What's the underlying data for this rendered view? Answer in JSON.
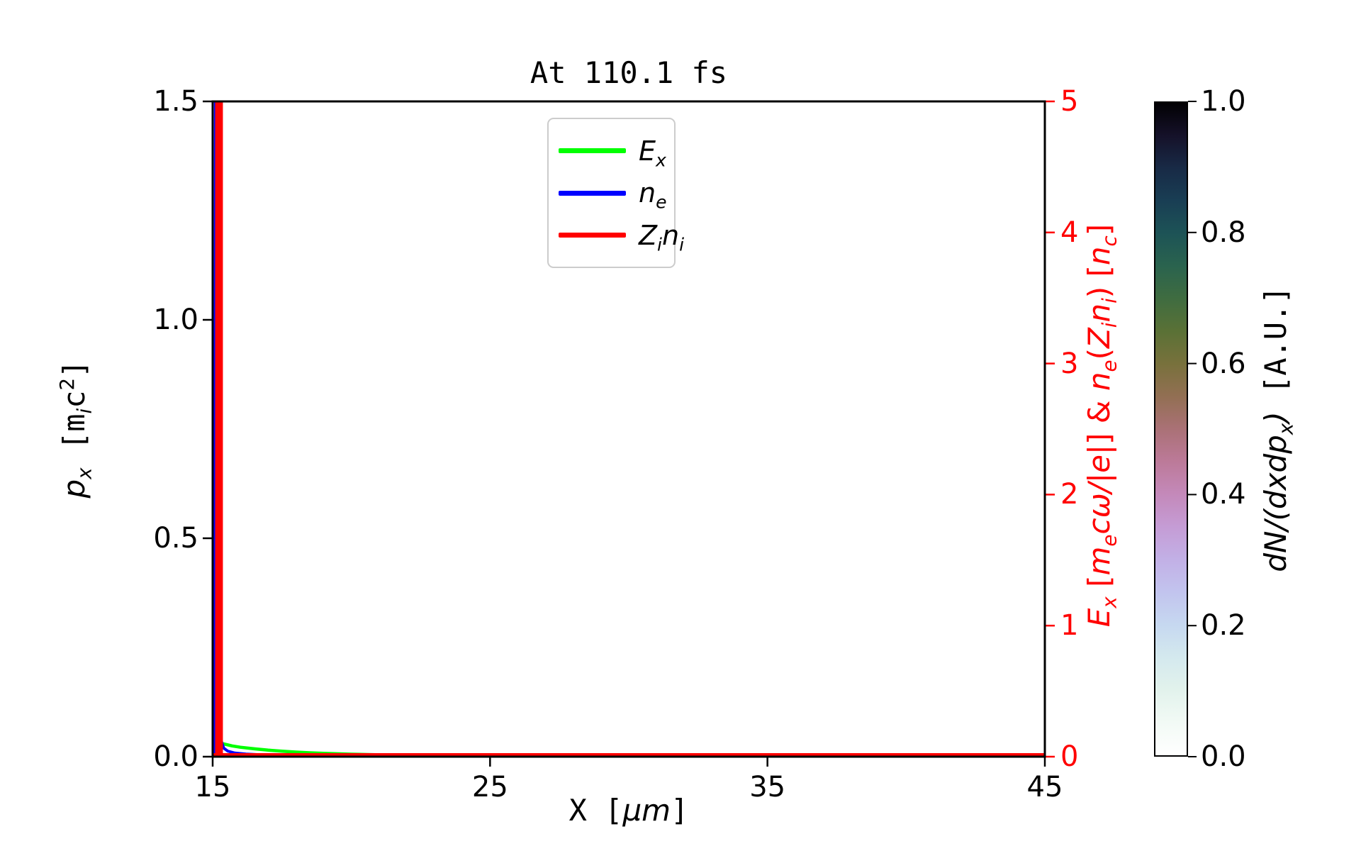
{
  "figure": {
    "title": "At 110.1 fs",
    "bg": "#ffffff"
  },
  "colors": {
    "spine": "#000000",
    "right_axis": "#ff0000",
    "legend_border": "#cccccc"
  },
  "axes": {
    "x": {
      "range": [
        15,
        45
      ],
      "tick_values": [
        15,
        25,
        35,
        45
      ],
      "ticks": [
        "15",
        "25",
        "35",
        "45"
      ],
      "label_rich": [
        {
          "t": "X [",
          "s": "mono"
        },
        {
          "t": "μm",
          "s": "it"
        },
        {
          "t": "]",
          "s": "mono"
        }
      ]
    },
    "y_left": {
      "range": [
        0,
        1.5
      ],
      "tick_values": [
        0,
        0.5,
        1.0,
        1.5
      ],
      "ticks": [
        "0.0",
        "0.5",
        "1.0",
        "1.5"
      ],
      "label_rich": [
        {
          "t": "p",
          "s": "it"
        },
        {
          "t": "x",
          "s": "subit"
        },
        {
          "t": " [",
          "s": "mono"
        },
        {
          "t": "m",
          "s": "mono"
        },
        {
          "t": "i",
          "s": "subit"
        },
        {
          "t": "c",
          "s": "mono"
        },
        {
          "t": "2",
          "s": "sup"
        },
        {
          "t": "]",
          "s": "mono"
        }
      ]
    },
    "y_right": {
      "color": "#ff0000",
      "range": [
        0,
        5
      ],
      "tick_values": [
        0,
        1,
        2,
        3,
        4,
        5
      ],
      "ticks": [
        "0",
        "1",
        "2",
        "3",
        "4",
        "5"
      ],
      "label_rich": [
        {
          "t": "E",
          "s": "it"
        },
        {
          "t": "x",
          "s": "subit"
        },
        {
          "t": " [",
          "s": ""
        },
        {
          "t": "m",
          "s": "it"
        },
        {
          "t": "e",
          "s": "subit"
        },
        {
          "t": "cω/|e|",
          "s": "it"
        },
        {
          "t": "] & ",
          "s": ""
        },
        {
          "t": "n",
          "s": "it"
        },
        {
          "t": "e",
          "s": "subit"
        },
        {
          "t": "(",
          "s": ""
        },
        {
          "t": "Z",
          "s": "it"
        },
        {
          "t": "i",
          "s": "subit"
        },
        {
          "t": "n",
          "s": "it"
        },
        {
          "t": "i",
          "s": "subit"
        },
        {
          "t": ") [",
          "s": ""
        },
        {
          "t": "n",
          "s": "it"
        },
        {
          "t": "c",
          "s": "subit"
        },
        {
          "t": "]",
          "s": ""
        }
      ]
    }
  },
  "legend": {
    "items": [
      {
        "color": "#00ff00",
        "label_rich": [
          {
            "t": "E",
            "s": "it"
          },
          {
            "t": "x",
            "s": "subit"
          }
        ]
      },
      {
        "color": "#0000ff",
        "label_rich": [
          {
            "t": "n",
            "s": "it"
          },
          {
            "t": "e",
            "s": "subit"
          }
        ]
      },
      {
        "color": "#ff0000",
        "label_rich": [
          {
            "t": "Z",
            "s": "it"
          },
          {
            "t": "i",
            "s": "subit"
          },
          {
            "t": "n",
            "s": "it"
          },
          {
            "t": "i",
            "s": "subit"
          }
        ]
      }
    ]
  },
  "colorbar": {
    "range": [
      0,
      1
    ],
    "tick_values": [
      0,
      0.2,
      0.4,
      0.6,
      0.8,
      1.0
    ],
    "ticks": [
      "0.0",
      "0.2",
      "0.4",
      "0.6",
      "0.8",
      "1.0"
    ],
    "label_rich": [
      {
        "t": "dN/(dxdp",
        "s": "it"
      },
      {
        "t": "x",
        "s": "subit"
      },
      {
        "t": ")",
        "s": "it"
      },
      {
        "t": " [A.U.]",
        "s": "mono"
      }
    ],
    "gradient": [
      {
        "p": 0.0,
        "c": "#ffffff"
      },
      {
        "p": 0.05,
        "c": "#f2faf5"
      },
      {
        "p": 0.1,
        "c": "#e2f2ec"
      },
      {
        "p": 0.15,
        "c": "#d4e9ee"
      },
      {
        "p": 0.2,
        "c": "#c6d8f0"
      },
      {
        "p": 0.25,
        "c": "#c2c4ee"
      },
      {
        "p": 0.3,
        "c": "#c2b0e6"
      },
      {
        "p": 0.35,
        "c": "#c59cd5"
      },
      {
        "p": 0.4,
        "c": "#c489ba"
      },
      {
        "p": 0.45,
        "c": "#bc7a99"
      },
      {
        "p": 0.5,
        "c": "#aa7176"
      },
      {
        "p": 0.55,
        "c": "#926f53"
      },
      {
        "p": 0.6,
        "c": "#78713c"
      },
      {
        "p": 0.65,
        "c": "#5a7136"
      },
      {
        "p": 0.7,
        "c": "#3f6c40"
      },
      {
        "p": 0.75,
        "c": "#2a634e"
      },
      {
        "p": 0.8,
        "c": "#1d5356"
      },
      {
        "p": 0.85,
        "c": "#193e54"
      },
      {
        "p": 0.9,
        "c": "#182a46"
      },
      {
        "p": 0.95,
        "c": "#151129"
      },
      {
        "p": 1.0,
        "c": "#020103"
      }
    ]
  },
  "chart_data": {
    "type": "line",
    "title": "At 110.1 fs",
    "x_axis": {
      "label": "X [um]",
      "range": [
        15,
        45
      ],
      "ticks": [
        15,
        25,
        35,
        45
      ]
    },
    "y_axis_left": {
      "label": "p_x [m_i c^2]",
      "range": [
        0,
        1.5
      ],
      "ticks": [
        0,
        0.5,
        1.0,
        1.5
      ]
    },
    "y_axis_right": {
      "label": "E_x [m_e c w/|e|] & n_e(Z_i n_i) [n_c]",
      "range": [
        0,
        5
      ],
      "ticks": [
        0,
        1,
        2,
        3,
        4,
        5
      ],
      "color": "#ff0000"
    },
    "colorbar": {
      "label": "dN/(dxdp_x) [A.U.]",
      "range": [
        0,
        1
      ],
      "ticks": [
        0,
        0.2,
        0.4,
        0.6,
        0.8,
        1.0
      ]
    },
    "legend_position": "upper center",
    "grid": false,
    "series": [
      {
        "name": "E_x",
        "color": "#00ff00",
        "axis": "right",
        "points": [
          [
            15.0,
            0.0
          ],
          [
            15.12,
            0.02
          ],
          [
            15.25,
            0.105
          ],
          [
            15.45,
            0.095
          ],
          [
            15.7,
            0.082
          ],
          [
            16.0,
            0.072
          ],
          [
            16.5,
            0.06
          ],
          [
            17.0,
            0.05
          ],
          [
            17.5,
            0.042
          ],
          [
            18.0,
            0.035
          ],
          [
            18.5,
            0.03
          ],
          [
            19.0,
            0.026
          ],
          [
            19.5,
            0.022
          ],
          [
            20.0,
            0.019
          ],
          [
            21.0,
            0.014
          ],
          [
            22.0,
            0.01
          ],
          [
            23.0,
            0.0075
          ],
          [
            24.0,
            0.0055
          ],
          [
            25.0,
            0.0042
          ],
          [
            26.0,
            0.0032
          ],
          [
            28.0,
            0.002
          ],
          [
            30.0,
            0.0012
          ],
          [
            33.0,
            0.0007
          ],
          [
            36.0,
            0.0004
          ],
          [
            40.0,
            0.0002
          ],
          [
            45.0,
            0.0001
          ]
        ]
      },
      {
        "name": "n_e",
        "color": "#0000ff",
        "axis": "right",
        "points": [
          [
            15.08,
            0.0
          ],
          [
            15.1,
            6.0
          ],
          [
            15.2,
            6.0
          ],
          [
            15.23,
            0.3
          ],
          [
            15.28,
            0.14
          ],
          [
            15.4,
            0.065
          ],
          [
            15.55,
            0.042
          ],
          [
            15.8,
            0.028
          ],
          [
            16.2,
            0.02
          ],
          [
            16.8,
            0.014
          ],
          [
            17.5,
            0.01
          ],
          [
            18.5,
            0.007
          ],
          [
            19.5,
            0.005
          ],
          [
            20.5,
            0.003
          ],
          [
            20.9,
            0.001
          ],
          [
            21.2,
            0.0
          ],
          [
            45.0,
            0.0
          ]
        ]
      },
      {
        "name": "Z_i n_i",
        "color": "#ff0000",
        "axis": "right",
        "points": [
          [
            15.0,
            0.012
          ],
          [
            15.16,
            0.012
          ],
          [
            15.16,
            6.0
          ],
          [
            15.3,
            6.0
          ],
          [
            15.3,
            0.012
          ],
          [
            45.0,
            0.012
          ]
        ]
      }
    ]
  }
}
